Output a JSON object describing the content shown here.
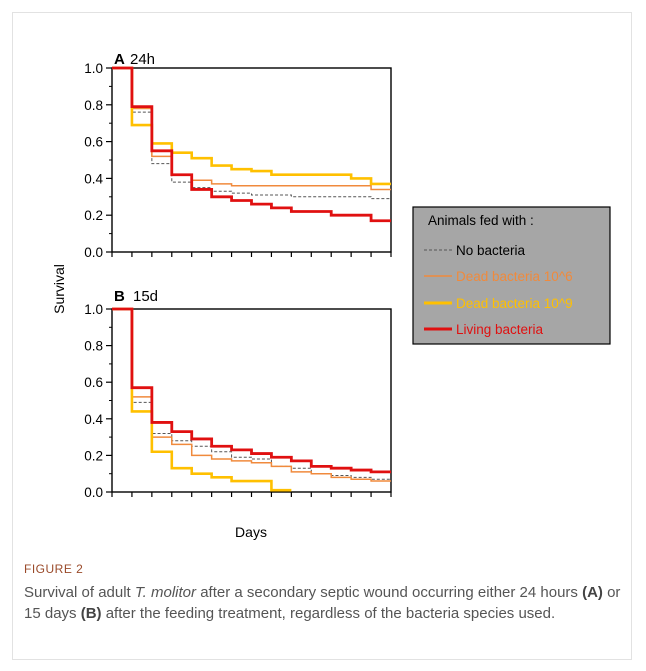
{
  "figure": {
    "label": "FIGURE 2",
    "caption": {
      "p1": "Survival of adult ",
      "species": "T. molitor",
      "p2": " after a secondary septic wound occurring either 24 hours ",
      "refA": "(A)",
      "p3": " or 15 days ",
      "refB": "(B)",
      "p4": " after the feeding treatment, regardless of the bacteria species used."
    }
  },
  "colors": {
    "no_bacteria": "#555555",
    "dead_10_6": "#f08a3c",
    "dead_10_9": "#ffc000",
    "living": "#e01010",
    "legend_bg": "#a6a6a6"
  },
  "chart_data": [
    {
      "type": "line",
      "panel": "A",
      "title": "24h",
      "ylabel": "Survival",
      "xlabel": "Days",
      "ylim": [
        0,
        1.0
      ],
      "yticks": [
        "0.0",
        "0.2",
        "0.4",
        "0.6",
        "0.8",
        "1.0"
      ],
      "step": true,
      "series": [
        {
          "name": "No bacteria",
          "x": [
            0,
            1,
            2,
            3,
            4,
            5,
            6,
            7,
            8,
            9,
            10,
            11,
            12,
            13
          ],
          "y": [
            1.0,
            0.76,
            0.48,
            0.38,
            0.35,
            0.33,
            0.32,
            0.31,
            0.31,
            0.3,
            0.3,
            0.3,
            0.3,
            0.29
          ]
        },
        {
          "name": "Dead bacteria 10^6",
          "x": [
            0,
            1,
            2,
            3,
            4,
            5,
            6,
            7,
            8,
            9,
            10,
            11,
            12,
            13
          ],
          "y": [
            1.0,
            0.78,
            0.52,
            0.42,
            0.39,
            0.37,
            0.36,
            0.36,
            0.36,
            0.36,
            0.36,
            0.36,
            0.36,
            0.34
          ]
        },
        {
          "name": "Dead bacteria 10^9",
          "x": [
            0,
            1,
            2,
            3,
            4,
            5,
            6,
            7,
            8,
            9,
            10,
            11,
            12,
            13
          ],
          "y": [
            1.0,
            0.69,
            0.59,
            0.54,
            0.51,
            0.47,
            0.45,
            0.44,
            0.42,
            0.42,
            0.42,
            0.42,
            0.4,
            0.37
          ]
        },
        {
          "name": "Living bacteria",
          "x": [
            0,
            1,
            2,
            3,
            4,
            5,
            6,
            7,
            8,
            9,
            10,
            11,
            12,
            13
          ],
          "y": [
            1.0,
            0.79,
            0.55,
            0.42,
            0.34,
            0.3,
            0.28,
            0.26,
            0.24,
            0.22,
            0.22,
            0.2,
            0.2,
            0.17
          ]
        }
      ]
    },
    {
      "type": "line",
      "panel": "B",
      "title": "15d",
      "ylabel": "Survival",
      "xlabel": "Days",
      "ylim": [
        0,
        1.0
      ],
      "yticks": [
        "0.0",
        "0.2",
        "0.4",
        "0.6",
        "0.8",
        "1.0"
      ],
      "step": true,
      "series": [
        {
          "name": "No bacteria",
          "x": [
            0,
            1,
            2,
            3,
            4,
            5,
            6,
            7,
            8,
            9,
            10,
            11,
            12,
            13
          ],
          "y": [
            1.0,
            0.49,
            0.32,
            0.28,
            0.25,
            0.22,
            0.19,
            0.18,
            0.14,
            0.13,
            0.1,
            0.09,
            0.08,
            0.07
          ]
        },
        {
          "name": "Dead bacteria 10^6",
          "x": [
            0,
            1,
            2,
            3,
            4,
            5,
            6,
            7,
            8,
            9,
            10,
            11,
            12,
            13
          ],
          "y": [
            1.0,
            0.52,
            0.3,
            0.26,
            0.2,
            0.18,
            0.17,
            0.16,
            0.14,
            0.11,
            0.1,
            0.08,
            0.07,
            0.06
          ]
        },
        {
          "name": "Dead bacteria 10^9",
          "x": [
            0,
            1,
            2,
            3,
            4,
            5,
            6,
            7,
            8
          ],
          "y": [
            1.0,
            0.44,
            0.22,
            0.13,
            0.1,
            0.08,
            0.06,
            0.06,
            0.01
          ]
        },
        {
          "name": "Living bacteria",
          "x": [
            0,
            1,
            2,
            3,
            4,
            5,
            6,
            7,
            8,
            9,
            10,
            11,
            12,
            13
          ],
          "y": [
            1.0,
            0.57,
            0.38,
            0.33,
            0.29,
            0.25,
            0.23,
            0.21,
            0.19,
            0.17,
            0.14,
            0.13,
            0.12,
            0.11
          ]
        }
      ]
    }
  ],
  "legend": {
    "title": "Animals fed with :",
    "items": [
      "No bacteria",
      "Dead bacteria 10^6",
      "Dead bacteria 10^9",
      "Living bacteria"
    ]
  }
}
